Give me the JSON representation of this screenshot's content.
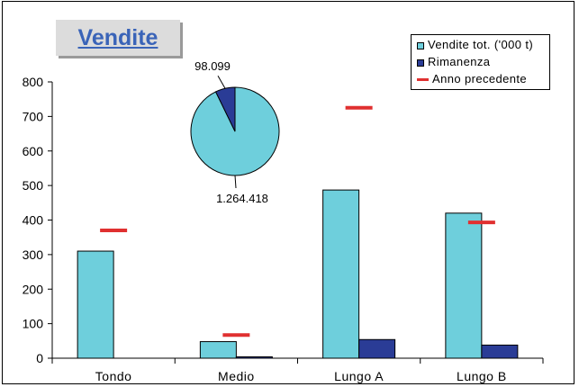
{
  "chart_data": [
    {
      "type": "bar",
      "title": "Vendite",
      "categories": [
        "Tondo",
        "Medio",
        "Lungo A",
        "Lungo B"
      ],
      "series": [
        {
          "name": "Vendite tot. ('000 t)",
          "values": [
            310,
            48,
            487,
            420
          ],
          "color": "#6ecfdc"
        },
        {
          "name": "Rimanenza",
          "values": [
            0,
            4,
            54,
            38
          ],
          "color": "#2a3c96"
        },
        {
          "name": "Anno precedente",
          "values": [
            370,
            67,
            725,
            393
          ],
          "color": "#e03030",
          "style": "dash-marker"
        }
      ],
      "ylim": [
        0,
        800
      ],
      "yticks": [
        "0",
        "100",
        "200",
        "300",
        "400",
        "500",
        "600",
        "700",
        "800"
      ],
      "grid": false,
      "legend": "top-right"
    },
    {
      "type": "pie",
      "labels": [
        "1.264.418",
        "98.099"
      ],
      "values": [
        1264418,
        98099
      ],
      "colors": [
        "#6ecfdc",
        "#2a3c96"
      ]
    }
  ],
  "colors": {
    "title_text": "#3a64b8",
    "title_box": "#dcdcdc",
    "axis": "#000000"
  }
}
